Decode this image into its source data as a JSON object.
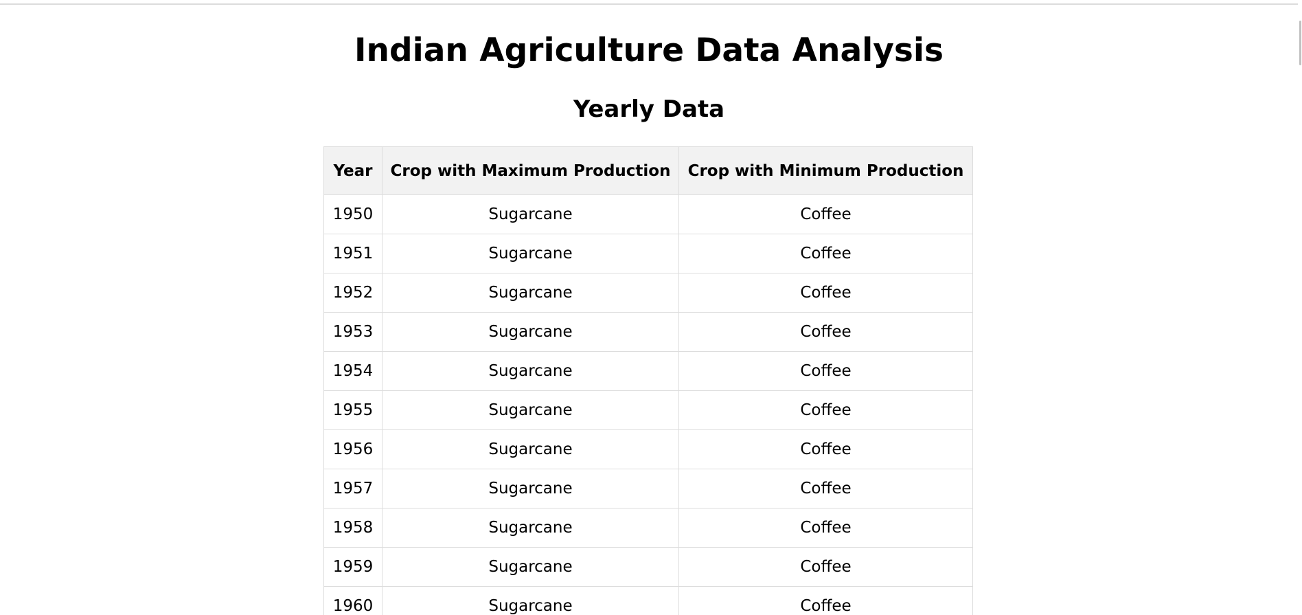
{
  "page": {
    "title": "Indian Agriculture Data Analysis",
    "section_title": "Yearly Data"
  },
  "table": {
    "headers": [
      "Year",
      "Crop with Maximum Production",
      "Crop with Minimum Production"
    ],
    "rows": [
      [
        "1950",
        "Sugarcane",
        "Coffee"
      ],
      [
        "1951",
        "Sugarcane",
        "Coffee"
      ],
      [
        "1952",
        "Sugarcane",
        "Coffee"
      ],
      [
        "1953",
        "Sugarcane",
        "Coffee"
      ],
      [
        "1954",
        "Sugarcane",
        "Coffee"
      ],
      [
        "1955",
        "Sugarcane",
        "Coffee"
      ],
      [
        "1956",
        "Sugarcane",
        "Coffee"
      ],
      [
        "1957",
        "Sugarcane",
        "Coffee"
      ],
      [
        "1958",
        "Sugarcane",
        "Coffee"
      ],
      [
        "1959",
        "Sugarcane",
        "Coffee"
      ],
      [
        "1960",
        "Sugarcane",
        "Coffee"
      ]
    ]
  }
}
